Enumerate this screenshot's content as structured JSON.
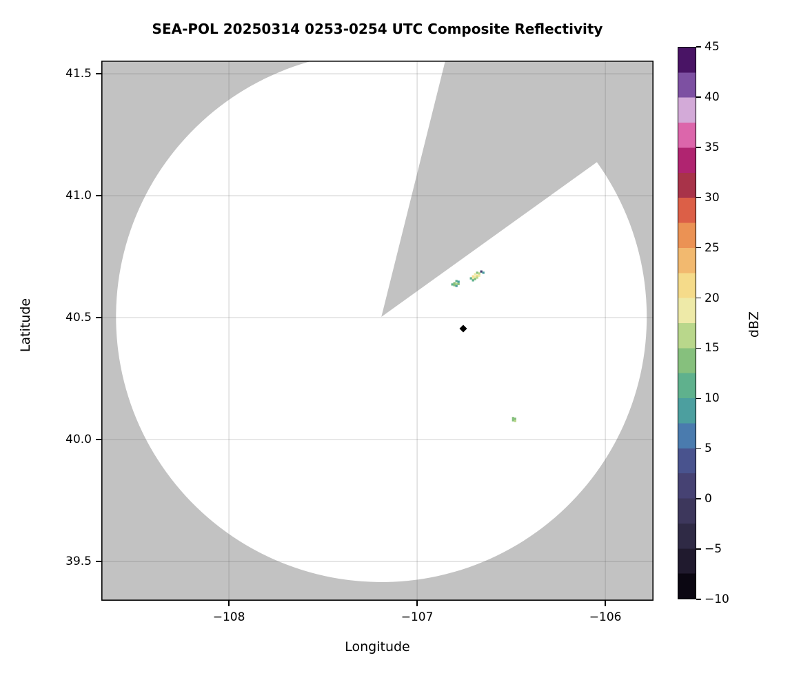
{
  "title": "SEA-POL 20250314 0253-0254 UTC Composite Reflectivity",
  "axes": {
    "xlabel": "Longitude",
    "ylabel": "Latitude",
    "xlim": [
      -108.678,
      -105.744
    ],
    "ylim": [
      39.339,
      41.554
    ],
    "xticks": [
      {
        "value": -108,
        "label": "−108"
      },
      {
        "value": -107,
        "label": "−107"
      },
      {
        "value": -106,
        "label": "−106"
      }
    ],
    "yticks": [
      {
        "value": 41.5,
        "label": "41.5"
      },
      {
        "value": 41.0,
        "label": "41.0"
      },
      {
        "value": 40.5,
        "label": "40.5"
      },
      {
        "value": 40.0,
        "label": "40.0"
      },
      {
        "value": 39.5,
        "label": "39.5"
      }
    ],
    "grid": true
  },
  "colorbar": {
    "label": "dBZ",
    "min": -10,
    "max": 45,
    "band_step": 2.5,
    "tick_values": [
      45,
      40,
      35,
      30,
      25,
      20,
      15,
      10,
      5,
      0,
      -5,
      -10
    ],
    "tick_labels": [
      "45",
      "40",
      "35",
      "30",
      "25",
      "20",
      "15",
      "10",
      "5",
      "0",
      "−5",
      "−10"
    ],
    "band_colors_bottom_to_top": [
      "#0b0712",
      "#201a2e",
      "#2f2a45",
      "#3d375c",
      "#464273",
      "#49538e",
      "#4a7bae",
      "#4c9f9f",
      "#5fb18d",
      "#86c07d",
      "#b9d78b",
      "#eeeaa8",
      "#f5db8a",
      "#f2b96f",
      "#eb9254",
      "#dc5f47",
      "#a83349",
      "#b02470",
      "#dc66ab",
      "#d3aad8",
      "#7d50a2",
      "#491465"
    ]
  },
  "radar": {
    "center_lon": -107.19,
    "center_lat": 40.503,
    "range_deg_lat": 1.0876,
    "blocked_sector_azimuth_deg": [
      14.0,
      54.3
    ],
    "site_marker": {
      "lon": -106.755,
      "lat": 40.455,
      "shape": "diamond",
      "color": "#000000"
    }
  },
  "colors": {
    "no_coverage_gray": "#c2c2c2",
    "scan_area_white": "#ffffff",
    "gridline": "rgba(90,90,90,0.25)",
    "spine": "#000000"
  },
  "chart_data": {
    "type": "heatmap",
    "units": "dBZ",
    "title": "SEA-POL 20250314 0253-0254 UTC Composite Reflectivity",
    "xlabel": "Longitude",
    "ylabel": "Latitude",
    "value_range": [
      -10,
      45
    ],
    "cell_size_deg": 0.012,
    "points": [
      {
        "lon": -106.659,
        "lat": 40.689,
        "dbz": 2
      },
      {
        "lon": -106.648,
        "lat": 40.684,
        "dbz": 8
      },
      {
        "lon": -106.681,
        "lat": 40.684,
        "dbz": 13
      },
      {
        "lon": -106.67,
        "lat": 40.681,
        "dbz": 16
      },
      {
        "lon": -106.692,
        "lat": 40.678,
        "dbz": 19
      },
      {
        "lon": -106.681,
        "lat": 40.672,
        "dbz": 21
      },
      {
        "lon": -106.67,
        "lat": 40.672,
        "dbz": 18
      },
      {
        "lon": -106.703,
        "lat": 40.669,
        "dbz": 22
      },
      {
        "lon": -106.692,
        "lat": 40.667,
        "dbz": 19
      },
      {
        "lon": -106.681,
        "lat": 40.664,
        "dbz": 16
      },
      {
        "lon": -106.703,
        "lat": 40.661,
        "dbz": 19
      },
      {
        "lon": -106.692,
        "lat": 40.658,
        "dbz": 13
      },
      {
        "lon": -106.714,
        "lat": 40.661,
        "dbz": 12
      },
      {
        "lon": -106.703,
        "lat": 40.653,
        "dbz": 11
      },
      {
        "lon": -106.791,
        "lat": 40.65,
        "dbz": 12
      },
      {
        "lon": -106.78,
        "lat": 40.647,
        "dbz": 9
      },
      {
        "lon": -106.802,
        "lat": 40.641,
        "dbz": 13
      },
      {
        "lon": -106.791,
        "lat": 40.638,
        "dbz": 17
      },
      {
        "lon": -106.78,
        "lat": 40.638,
        "dbz": 14
      },
      {
        "lon": -106.813,
        "lat": 40.636,
        "dbz": 11
      },
      {
        "lon": -106.802,
        "lat": 40.633,
        "dbz": 13
      },
      {
        "lon": -106.791,
        "lat": 40.63,
        "dbz": 8
      },
      {
        "lon": -106.49,
        "lat": 40.088,
        "dbz": 14
      },
      {
        "lon": -106.479,
        "lat": 40.085,
        "dbz": 13
      },
      {
        "lon": -106.49,
        "lat": 40.079,
        "dbz": 13
      },
      {
        "lon": -106.479,
        "lat": 40.076,
        "dbz": 15
      }
    ]
  }
}
